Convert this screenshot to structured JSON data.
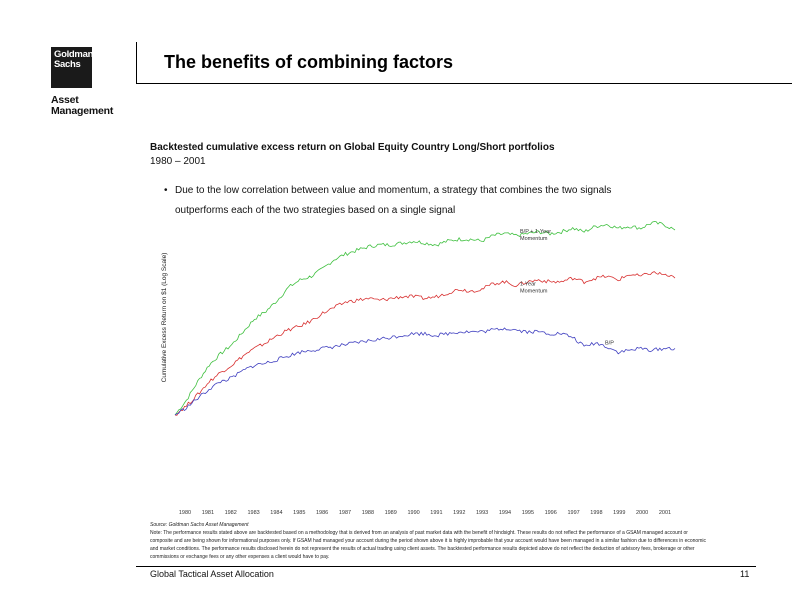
{
  "logo": {
    "line1": "Goldman",
    "line2": "Sachs"
  },
  "division": {
    "line1": "Asset",
    "line2": "Management"
  },
  "title": "The benefits of combining factors",
  "subtitle": "Backtested cumulative excess return on Global Equity Country Long/Short portfolios",
  "date_range": "1980 – 2001",
  "bullet": "Due to the low correlation between value and momentum, a strategy that combines the two signals outperforms each of the two strategies based on a single signal",
  "source": "Source: Goldman Sachs Asset Management",
  "note": "Note: The performance results stated above are backtested based on a methodology that is derived from an analysis of past market data with the benefit of hindsight. These results do not reflect the performance of a GSAM managed account or composite and are being shown for informational purposes only. If GSAM had managed your account during the period shown above it is highly improbable that your account would have been managed in a similar fashion due to differences in economic and market conditions. The performance results disclosed herein do not represent the results of actual trading using client assets. The backtested performance results depicted above do not reflect the deduction of advisory fees, brokerage or other commissions or exchange fees or any other expenses a client would have to pay.",
  "footer": {
    "left": "Global Tactical Asset Allocation",
    "page": "11"
  },
  "colors": {
    "combined": "#40c040",
    "momentum": "#d83030",
    "value": "#4040c0"
  },
  "chart_data": {
    "type": "line",
    "ylabel": "Cumulative Excess Return on $1 (Log Scale)",
    "xlabel": "",
    "x": [
      1980,
      1980.5,
      1981,
      1981.5,
      1982,
      1982.5,
      1983,
      1983.5,
      1984,
      1984.5,
      1985,
      1985.5,
      1986,
      1986.5,
      1987,
      1987.5,
      1988,
      1988.5,
      1989,
      1989.5,
      1990,
      1990.5,
      1991,
      1991.5,
      1992,
      1992.5,
      1993,
      1993.5,
      1994,
      1994.5,
      1995,
      1995.5,
      1996,
      1996.5,
      1997,
      1997.5,
      1998,
      1998.5,
      1999,
      1999.5,
      2000,
      2000.5,
      2001,
      2001.5,
      2002
    ],
    "x_ticks": [
      "1980",
      "1981",
      "1982",
      "1983",
      "1984",
      "1985",
      "1986",
      "1987",
      "1988",
      "1989",
      "1990",
      "1991",
      "1992",
      "1993",
      "1994",
      "1995",
      "1996",
      "1997",
      "1998",
      "1999",
      "2000",
      "2001"
    ],
    "grid": false,
    "series": [
      {
        "name": "B/P + 1-Year Momentum",
        "color_key": "combined",
        "values": [
          0.0,
          0.08,
          0.18,
          0.27,
          0.33,
          0.38,
          0.45,
          0.52,
          0.56,
          0.62,
          0.69,
          0.73,
          0.75,
          0.79,
          0.84,
          0.87,
          0.89,
          0.91,
          0.92,
          0.92,
          0.93,
          0.94,
          0.93,
          0.92,
          0.94,
          0.95,
          0.95,
          0.94,
          0.97,
          0.98,
          0.97,
          0.98,
          0.99,
          0.98,
          0.99,
          1.01,
          0.99,
          1.02,
          1.03,
          1.01,
          1.02,
          1.01,
          1.04,
          1.03,
          1.0
        ]
      },
      {
        "name": "1-Year Momentum",
        "color_key": "momentum",
        "values": [
          0.0,
          0.05,
          0.11,
          0.18,
          0.23,
          0.27,
          0.32,
          0.36,
          0.39,
          0.43,
          0.46,
          0.48,
          0.51,
          0.55,
          0.58,
          0.61,
          0.62,
          0.63,
          0.62,
          0.63,
          0.64,
          0.64,
          0.63,
          0.64,
          0.66,
          0.68,
          0.67,
          0.68,
          0.71,
          0.72,
          0.7,
          0.72,
          0.73,
          0.72,
          0.72,
          0.74,
          0.72,
          0.74,
          0.75,
          0.73,
          0.76,
          0.75,
          0.77,
          0.76,
          0.74
        ]
      },
      {
        "name": "B/P",
        "color_key": "value",
        "values": [
          0.0,
          0.04,
          0.09,
          0.14,
          0.18,
          0.2,
          0.24,
          0.27,
          0.28,
          0.3,
          0.32,
          0.34,
          0.35,
          0.36,
          0.37,
          0.38,
          0.39,
          0.4,
          0.41,
          0.42,
          0.43,
          0.44,
          0.44,
          0.43,
          0.44,
          0.45,
          0.45,
          0.45,
          0.46,
          0.47,
          0.46,
          0.45,
          0.45,
          0.44,
          0.44,
          0.42,
          0.37,
          0.39,
          0.37,
          0.34,
          0.35,
          0.36,
          0.35,
          0.36,
          0.36
        ]
      }
    ]
  }
}
